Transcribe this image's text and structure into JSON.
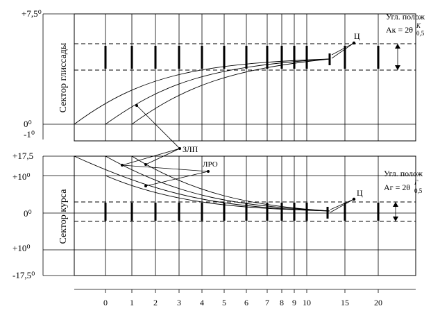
{
  "glide_panel": {
    "title": "Сектор глиссады",
    "y_labels": [
      "+7,5⁰",
      "0⁰",
      "-1⁰"
    ],
    "right_label": "Угл. полож",
    "right_formula": "Aк = 2θ",
    "formula_sup": "K",
    "formula_sub": "0,5",
    "center_label": "Ц"
  },
  "course_panel": {
    "title": "Сектор курса",
    "y_labels": [
      "+17,5",
      "+10⁰",
      "0⁰",
      "+10⁰",
      "-17,5⁰"
    ],
    "right_label": "Угл. полож",
    "right_formula": "Aг = 2θ",
    "formula_sup": "Г",
    "formula_sub": "0,5",
    "center_label": "Ц"
  },
  "shared_labels": {
    "zlp": "ЗЛП",
    "lro": "ЛРО"
  },
  "x_axis": {
    "ticks": [
      "0",
      "1",
      "2",
      "3",
      "4",
      "5",
      "6",
      "7",
      "8",
      "9",
      "10",
      "15",
      "20"
    ]
  }
}
